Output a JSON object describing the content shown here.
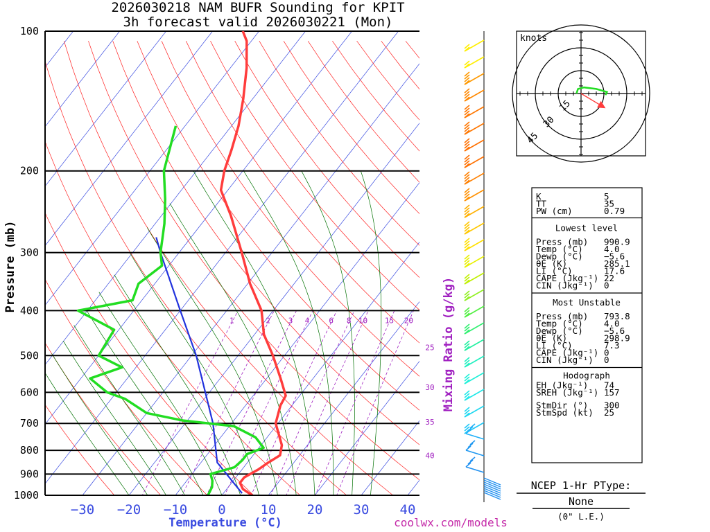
{
  "title": {
    "line1": "2026030218 NAM BUFR Sounding for KPIT",
    "line2": "3h forecast valid 2026030221 (Mon)"
  },
  "axes": {
    "ylabel": "Pressure (mb)",
    "xlabel": "Temperature (°C)",
    "pressure_ticks": [
      100,
      200,
      300,
      400,
      500,
      600,
      700,
      800,
      900,
      1000
    ],
    "temp_ticks": [
      -30,
      -20,
      -10,
      0,
      10,
      20,
      30,
      40
    ],
    "temp_tick_labels": [
      "−30",
      "−20",
      "−10",
      "0",
      "10",
      "20",
      "30",
      "40"
    ],
    "mixing_ratio_title": "Mixing Ratio (g/kg)",
    "mixing_ratio_labels": [
      "1",
      "2",
      "3",
      "4",
      "6",
      "8",
      "10",
      "15",
      "20"
    ],
    "right_side_labels": [
      "25",
      "30",
      "35",
      "40"
    ]
  },
  "colors": {
    "temperature": "#ff3c3c",
    "dewpoint": "#22dd22",
    "parcel": "#2233dd",
    "isotherm": "#3a4be0",
    "dry_adiabat": "#ff2020",
    "moist_adiabat": "#007000",
    "mixing_ratio": "#a020c0"
  },
  "chart_data": {
    "type": "skew-t",
    "temperature": [
      {
        "p": 1000,
        "t": 6.5
      },
      {
        "p": 970,
        "t": 3.5
      },
      {
        "p": 940,
        "t": 1.8
      },
      {
        "p": 915,
        "t": 1.8
      },
      {
        "p": 880,
        "t": 3.5
      },
      {
        "p": 850,
        "t": 4.5
      },
      {
        "p": 820,
        "t": 5.8
      },
      {
        "p": 780,
        "t": 4.5
      },
      {
        "p": 700,
        "t": -0.5
      },
      {
        "p": 640,
        "t": -2.5
      },
      {
        "p": 610,
        "t": -3.0
      },
      {
        "p": 560,
        "t": -7.0
      },
      {
        "p": 500,
        "t": -12.5
      },
      {
        "p": 450,
        "t": -18.0
      },
      {
        "p": 400,
        "t": -22.5
      },
      {
        "p": 350,
        "t": -29.5
      },
      {
        "p": 300,
        "t": -36.5
      },
      {
        "p": 250,
        "t": -45.0
      },
      {
        "p": 220,
        "t": -51.5
      },
      {
        "p": 200,
        "t": -54.0
      },
      {
        "p": 180,
        "t": -56.0
      },
      {
        "p": 160,
        "t": -58.5
      },
      {
        "p": 140,
        "t": -62.0
      },
      {
        "p": 120,
        "t": -66.5
      },
      {
        "p": 105,
        "t": -71.0
      },
      {
        "p": 100,
        "t": -73.5
      }
    ],
    "dewpoint": [
      {
        "p": 1000,
        "t": -3.0
      },
      {
        "p": 960,
        "t": -3.5
      },
      {
        "p": 930,
        "t": -4.5
      },
      {
        "p": 900,
        "t": -6.0
      },
      {
        "p": 870,
        "t": -2.0
      },
      {
        "p": 840,
        "t": -1.5
      },
      {
        "p": 815,
        "t": -1.5
      },
      {
        "p": 790,
        "t": 1.0
      },
      {
        "p": 750,
        "t": -2.5
      },
      {
        "p": 710,
        "t": -9.0
      },
      {
        "p": 690,
        "t": -21.0
      },
      {
        "p": 665,
        "t": -30.0
      },
      {
        "p": 620,
        "t": -37.0
      },
      {
        "p": 600,
        "t": -42.0
      },
      {
        "p": 560,
        "t": -48.0
      },
      {
        "p": 530,
        "t": -43.0
      },
      {
        "p": 500,
        "t": -50.0
      },
      {
        "p": 440,
        "t": -51.0
      },
      {
        "p": 400,
        "t": -62.0
      },
      {
        "p": 380,
        "t": -52.0
      },
      {
        "p": 350,
        "t": -53.5
      },
      {
        "p": 320,
        "t": -51.5
      },
      {
        "p": 300,
        "t": -54.0
      },
      {
        "p": 260,
        "t": -58.0
      },
      {
        "p": 230,
        "t": -62.0
      },
      {
        "p": 200,
        "t": -67.0
      },
      {
        "p": 160,
        "t": -72.0
      }
    ],
    "parcel_line": [
      {
        "p": 990,
        "t": 4.0
      },
      {
        "p": 850,
        "t": -6.5
      },
      {
        "p": 700,
        "t": -14.0
      },
      {
        "p": 500,
        "t": -29.0
      },
      {
        "p": 400,
        "t": -40.0
      },
      {
        "p": 300,
        "t": -54.0
      },
      {
        "p": 278,
        "t": -57.5
      }
    ],
    "mixing_ratio_lines": [
      1,
      2,
      3,
      4,
      6,
      8,
      10,
      15,
      20
    ],
    "pressure_range": [
      1000,
      100
    ],
    "temperature_range_at_1000": [
      -40,
      42
    ]
  },
  "hodograph": {
    "units_label": "knots",
    "ring_labels": [
      "15",
      "30",
      "45"
    ],
    "wind_trace": [
      {
        "u": -3,
        "v": 0
      },
      {
        "u": -2,
        "v": 3
      },
      {
        "u": 2,
        "v": 4
      },
      {
        "u": 10,
        "v": 3
      },
      {
        "u": 17,
        "v": 1
      },
      {
        "u": 16,
        "v": -1
      }
    ],
    "storm_motion_arrow": {
      "from_u": 0,
      "from_v": 0,
      "to_u": 15,
      "to_v": -9
    }
  },
  "stats": {
    "top": [
      {
        "label": "K",
        "value": "5"
      },
      {
        "label": "TT",
        "value": "35"
      },
      {
        "label": "PW (cm)",
        "value": "0.79"
      }
    ],
    "lowest": {
      "heading": "Lowest level",
      "rows": [
        {
          "label": "Press (mb)",
          "value": "990.9"
        },
        {
          "label": "Temp (°C)",
          "value": "4.0"
        },
        {
          "label": "Dewp (°C)",
          "value": "−5.6"
        },
        {
          "label": "θE (K)",
          "value": "285.1"
        },
        {
          "label": "LI (°C)",
          "value": "17.6"
        },
        {
          "label": "CAPE (Jkg⁻¹)",
          "value": "22"
        },
        {
          "label": "CIN (Jkg⁻¹)",
          "value": "0"
        }
      ]
    },
    "unstable": {
      "heading": "Most Unstable",
      "rows": [
        {
          "label": "Press (mb)",
          "value": "793.8"
        },
        {
          "label": "Temp (°C)",
          "value": "4.0"
        },
        {
          "label": "Dewp (°C)",
          "value": "−5.6"
        },
        {
          "label": "θE (K)",
          "value": "298.9"
        },
        {
          "label": "LI (°C)",
          "value": "7.3"
        },
        {
          "label": "CAPE (Jkg⁻¹)",
          "value": "0"
        },
        {
          "label": "CIN (Jkg⁻¹)",
          "value": "0"
        }
      ]
    },
    "hodo": {
      "heading": "Hodograph",
      "rows": [
        {
          "label": "EH (Jkg⁻¹)",
          "value": "74"
        },
        {
          "label": "SREH (Jkg⁻¹)",
          "value": "157"
        }
      ]
    },
    "storm": [
      {
        "label": "StmDir (°)",
        "value": "300"
      },
      {
        "label": "StmSpd (kt)",
        "value": "25"
      }
    ]
  },
  "ptype": {
    "title": "NCEP 1-Hr PType:",
    "value": "None",
    "note": "(0\" L.E.)"
  },
  "footer": "coolwx.com/models"
}
